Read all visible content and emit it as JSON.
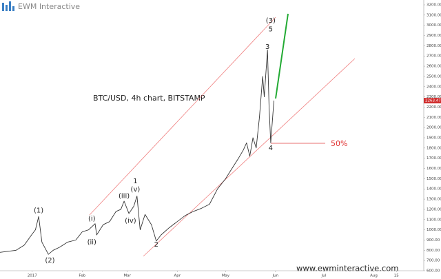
{
  "brand": "EWM Interactive",
  "footer": "www.ewminteractive.com",
  "level_label": "50%",
  "chart_data": {
    "type": "line",
    "title": "BTC/USD, 4h chart, BITSTAMP",
    "color": "#333333",
    "x": [
      -20,
      -15,
      -10,
      -5,
      0,
      2,
      4,
      6,
      8,
      10,
      13,
      17,
      22,
      27,
      31,
      35,
      39,
      40,
      44,
      48,
      52,
      55,
      57,
      60,
      63,
      65,
      67,
      70,
      74,
      77,
      80,
      85,
      90,
      95,
      100,
      105,
      110,
      115,
      120,
      124,
      128,
      131,
      133,
      135,
      137,
      139,
      141,
      143,
      144,
      146,
      147,
      148,
      150
    ],
    "values": [
      780,
      790,
      800,
      850,
      960,
      1000,
      1130,
      880,
      820,
      760,
      800,
      830,
      880,
      900,
      980,
      1000,
      1060,
      950,
      1050,
      1080,
      1180,
      1200,
      1280,
      1160,
      1230,
      1330,
      1000,
      1150,
      1050,
      890,
      950,
      1020,
      1080,
      1140,
      1180,
      1210,
      1250,
      1400,
      1500,
      1600,
      1700,
      1780,
      1850,
      1720,
      1900,
      1800,
      2100,
      2500,
      2300,
      2760,
      2200,
      1850,
      2263.47
    ],
    "xlim": [
      -20,
      243
    ],
    "xticks": [
      {
        "value": 0,
        "label": "2017"
      },
      {
        "value": 31,
        "label": "Feb"
      },
      {
        "value": 59,
        "label": "Mar"
      },
      {
        "value": 90,
        "label": "Apr"
      },
      {
        "value": 120,
        "label": "May"
      },
      {
        "value": 151,
        "label": "Jun"
      },
      {
        "value": 181,
        "label": "Jul"
      },
      {
        "value": 212,
        "label": "Aug"
      },
      {
        "value": 226,
        "label": "15"
      }
    ],
    "ylim": [
      600,
      3200
    ],
    "yticks": [
      {
        "value": 600,
        "label": "600.00"
      },
      {
        "value": 700,
        "label": "700.00"
      },
      {
        "value": 800,
        "label": "800.00"
      },
      {
        "value": 900,
        "label": "900.00"
      },
      {
        "value": 1000,
        "label": "1000.00"
      },
      {
        "value": 1100,
        "label": "1100.00"
      },
      {
        "value": 1200,
        "label": "1200.00"
      },
      {
        "value": 1300,
        "label": "1300.00"
      },
      {
        "value": 1400,
        "label": "1400.00"
      },
      {
        "value": 1500,
        "label": "1500.00"
      },
      {
        "value": 1600,
        "label": "1600.00"
      },
      {
        "value": 1700,
        "label": "1700.00"
      },
      {
        "value": 1800,
        "label": "1800.00"
      },
      {
        "value": 1900,
        "label": "1900.00"
      },
      {
        "value": 2000,
        "label": "2000.00"
      },
      {
        "value": 2100,
        "label": "2100.00"
      },
      {
        "value": 2200,
        "label": "2200.00"
      },
      {
        "value": 2300,
        "label": "2300.00"
      },
      {
        "value": 2400,
        "label": "2400.00"
      },
      {
        "value": 2500,
        "label": "2500.00"
      },
      {
        "value": 2600,
        "label": "2600.00"
      },
      {
        "value": 2700,
        "label": "2700.00"
      },
      {
        "value": 2800,
        "label": "2800.00"
      },
      {
        "value": 2900,
        "label": "2900.00"
      },
      {
        "value": 3000,
        "label": "3000.00"
      },
      {
        "value": 3100,
        "label": "3100.00"
      },
      {
        "value": 3200,
        "label": "3200.00"
      }
    ],
    "annotations": [
      {
        "text": "(1)",
        "x": 4,
        "y": 1190
      },
      {
        "text": "(2)",
        "x": 11,
        "y": 700
      },
      {
        "text": "(i)",
        "x": 37,
        "y": 1110
      },
      {
        "text": "(ii)",
        "x": 37,
        "y": 880
      },
      {
        "text": "(iii)",
        "x": 57,
        "y": 1330
      },
      {
        "text": "(iv)",
        "x": 61,
        "y": 1090
      },
      {
        "text": "(v)",
        "x": 64,
        "y": 1395
      },
      {
        "text": "1",
        "x": 64,
        "y": 1475
      },
      {
        "text": "2",
        "x": 77,
        "y": 855
      },
      {
        "text": "3",
        "x": 146,
        "y": 2790
      },
      {
        "text": "4",
        "x": 148,
        "y": 1800
      },
      {
        "text": "5",
        "x": 148,
        "y": 2960
      },
      {
        "text": "(3)",
        "x": 148,
        "y": 3045
      }
    ]
  }
}
